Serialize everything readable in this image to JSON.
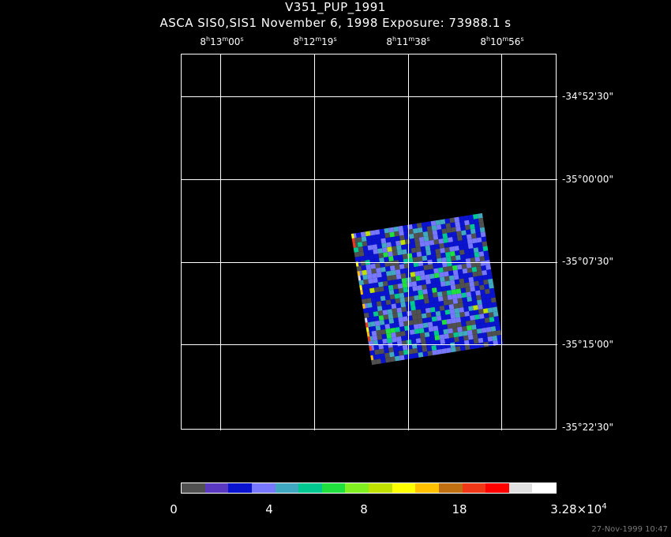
{
  "header": {
    "title": "V351_PUP_1991",
    "subtitle": "ASCA SIS0,SIS1 November 6, 1998 Exposure: 73988.1 s"
  },
  "ra_ticks": [
    {
      "h": "8",
      "m": "13",
      "s": "00"
    },
    {
      "h": "8",
      "m": "12",
      "s": "19"
    },
    {
      "h": "8",
      "m": "11",
      "s": "38"
    },
    {
      "h": "8",
      "m": "10",
      "s": "56"
    }
  ],
  "dec_ticks": [
    "-34°52'30\"",
    "-35°00'00\"",
    "-35°07'30\"",
    "-35°15'00\"",
    "-35°22'30\""
  ],
  "colorbar": {
    "colors": [
      "#505050",
      "#5a38c0",
      "#0a14d0",
      "#7878ff",
      "#40a8c0",
      "#00c890",
      "#20e040",
      "#80f020",
      "#c0e000",
      "#ffff00",
      "#ffc000",
      "#c07010",
      "#f03818",
      "#ff0000",
      "#e0e0e0",
      "#ffffff"
    ],
    "labels": [
      {
        "text": "0"
      },
      {
        "text": "4"
      },
      {
        "text": "8"
      },
      {
        "text": "18"
      },
      {
        "mantissa": "3.28×10",
        "exp": "4"
      }
    ]
  },
  "timestamp": "27-Nov-1999 10:47"
}
